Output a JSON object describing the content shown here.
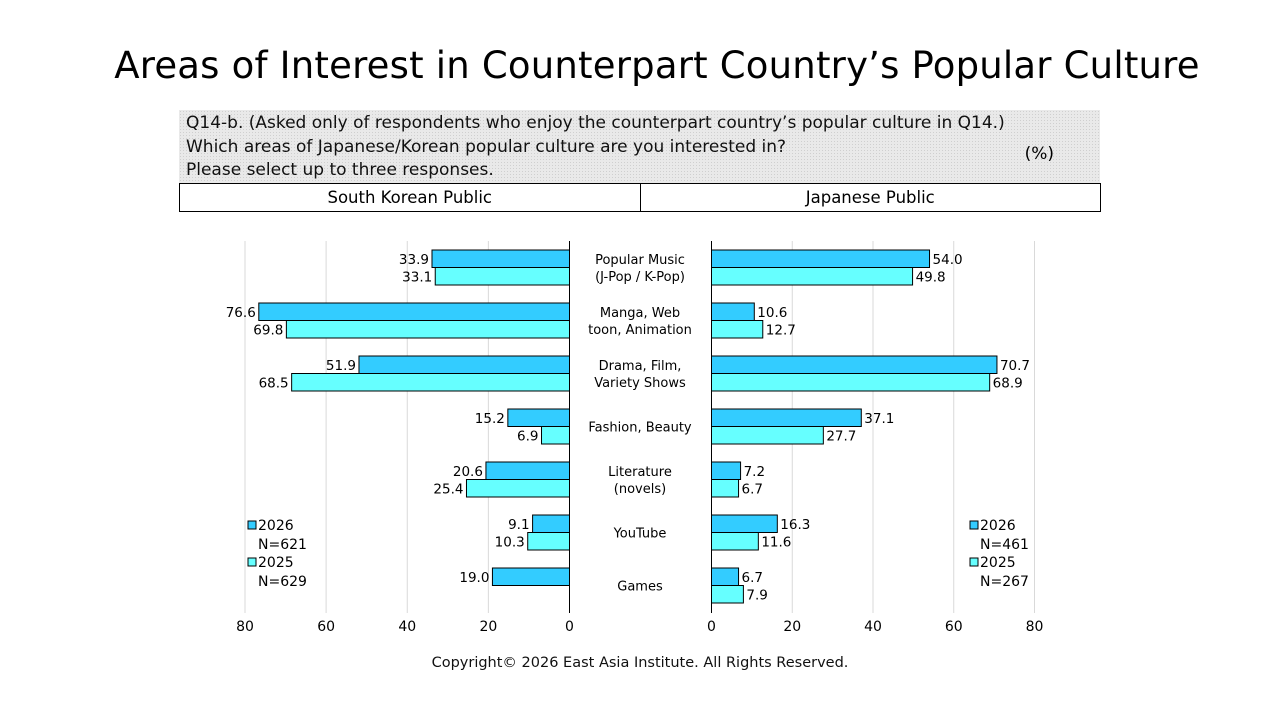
{
  "title": "Areas of Interest in Counterpart Country’s Popular Culture",
  "question": {
    "lines": [
      "Q14-b. (Asked only of respondents who enjoy the counterpart country’s popular culture in Q14.)",
      "Which areas of Japanese/Korean popular culture are you interested in?",
      "Please select up to three responses."
    ],
    "unit": "(%)"
  },
  "panels": {
    "left": "South Korean Public",
    "right": "Japanese Public"
  },
  "colors": {
    "series_2026": "#33ccff",
    "series_2025": "#66ffff",
    "grid": "#d9d9d9"
  },
  "chart_data": {
    "type": "bar",
    "orientation": "horizontal-butterfly",
    "categories": [
      [
        "Popular Music",
        "(J-Pop / K-Pop)"
      ],
      [
        "Manga, Web",
        "toon, Animation"
      ],
      [
        "Drama, Film,",
        "Variety Shows"
      ],
      [
        "Fashion, Beauty"
      ],
      [
        "Literature",
        "(novels)"
      ],
      [
        "YouTube"
      ],
      [
        "Games"
      ]
    ],
    "left": {
      "label": "South Korean Public",
      "legend": [
        {
          "year": "2026",
          "n": "N=621"
        },
        {
          "year": "2025",
          "n": "N=629"
        }
      ],
      "series": [
        {
          "name": "2026",
          "values": [
            33.9,
            76.6,
            51.9,
            15.2,
            20.6,
            9.1,
            19.0
          ]
        },
        {
          "name": "2025",
          "values": [
            33.1,
            69.8,
            68.5,
            6.9,
            25.4,
            10.3,
            null
          ]
        }
      ]
    },
    "right": {
      "label": "Japanese Public",
      "legend": [
        {
          "year": "2026",
          "n": "N=461"
        },
        {
          "year": "2025",
          "n": "N=267"
        }
      ],
      "series": [
        {
          "name": "2026",
          "values": [
            54.0,
            10.6,
            70.7,
            37.1,
            7.2,
            16.3,
            6.7
          ]
        },
        {
          "name": "2025",
          "values": [
            49.8,
            12.7,
            68.9,
            27.7,
            6.7,
            11.6,
            7.9
          ]
        }
      ]
    },
    "xlim": [
      0,
      80
    ],
    "ticks": [
      0,
      20,
      40,
      60,
      80
    ],
    "grid": true,
    "legend_position": "bottom-outer"
  },
  "copyright": "Copyright© 2026 East Asia Institute. All Rights Reserved."
}
